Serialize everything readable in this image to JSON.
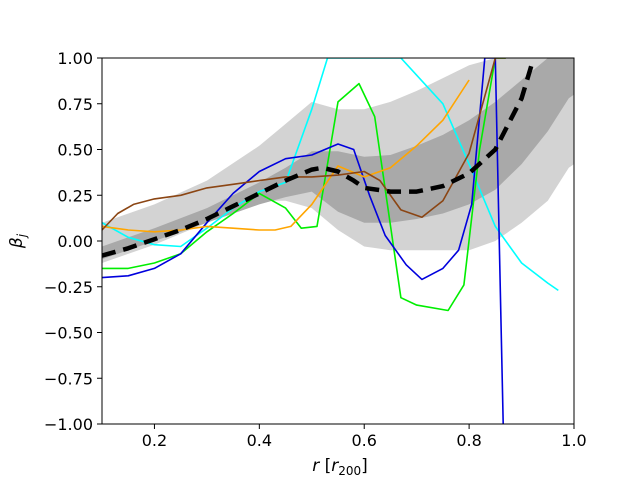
{
  "chart_data": {
    "type": "line",
    "title": "",
    "xlabel_main": "r",
    "xlabel_unit": "r",
    "xlabel_unit_sub": "200",
    "ylabel_main": "β",
    "ylabel_sub": "j",
    "xlim": [
      0.1,
      1.0
    ],
    "ylim": [
      -1.0,
      1.0
    ],
    "xticks": [
      0.2,
      0.4,
      0.6,
      0.8,
      1.0
    ],
    "xtick_labels": [
      "0.2",
      "0.4",
      "0.6",
      "0.8",
      "1.0"
    ],
    "yticks": [
      -1.0,
      -0.75,
      -0.5,
      -0.25,
      0.0,
      0.25,
      0.5,
      0.75,
      1.0
    ],
    "ytick_labels": [
      "−1.00",
      "−0.75",
      "−0.50",
      "−0.25",
      "0.00",
      "0.25",
      "0.50",
      "0.75",
      "1.00"
    ],
    "grid": false,
    "bands": [
      {
        "name": "outer band",
        "color": "#d3d3d3",
        "x": [
          0.1,
          0.2,
          0.3,
          0.4,
          0.45,
          0.5,
          0.55,
          0.6,
          0.65,
          0.7,
          0.75,
          0.8,
          0.85,
          0.9,
          0.95,
          0.99,
          1.0
        ],
        "upper": [
          0.1,
          0.2,
          0.33,
          0.52,
          0.64,
          0.76,
          0.72,
          0.72,
          0.76,
          0.82,
          0.89,
          0.96,
          1.0,
          1.0,
          1.0,
          1.0,
          1.0
        ],
        "lower": [
          -0.12,
          -0.02,
          0.1,
          0.22,
          0.22,
          0.18,
          0.06,
          -0.03,
          -0.05,
          -0.05,
          -0.05,
          -0.05,
          0.0,
          0.1,
          0.22,
          0.4,
          0.42
        ]
      },
      {
        "name": "inner band",
        "color": "#a9a9a9",
        "x": [
          0.1,
          0.2,
          0.3,
          0.4,
          0.45,
          0.5,
          0.55,
          0.6,
          0.65,
          0.7,
          0.75,
          0.8,
          0.85,
          0.9,
          0.95,
          0.99,
          1.0
        ],
        "upper": [
          -0.03,
          0.07,
          0.18,
          0.32,
          0.4,
          0.49,
          0.49,
          0.46,
          0.47,
          0.52,
          0.58,
          0.66,
          0.76,
          0.88,
          1.0,
          1.0,
          1.0
        ],
        "lower": [
          -0.1,
          0.0,
          0.1,
          0.2,
          0.24,
          0.27,
          0.16,
          0.1,
          0.1,
          0.12,
          0.15,
          0.2,
          0.28,
          0.42,
          0.6,
          0.78,
          0.8
        ]
      }
    ],
    "series": [
      {
        "name": "cyan",
        "color": "#00ffff",
        "x": [
          0.1,
          0.15,
          0.2,
          0.25,
          0.3,
          0.35,
          0.4,
          0.45,
          0.5,
          0.53,
          0.67,
          0.75,
          0.8,
          0.85,
          0.9,
          0.95,
          0.97
        ],
        "y": [
          0.1,
          0.02,
          -0.02,
          -0.03,
          0.07,
          0.18,
          0.27,
          0.32,
          0.72,
          1.0,
          1.0,
          0.75,
          0.42,
          0.08,
          -0.12,
          -0.23,
          -0.27
        ]
      },
      {
        "name": "green",
        "color": "#00ee00",
        "x": [
          0.1,
          0.15,
          0.2,
          0.25,
          0.3,
          0.35,
          0.4,
          0.45,
          0.48,
          0.51,
          0.55,
          0.59,
          0.62,
          0.67,
          0.7,
          0.76,
          0.79,
          0.82,
          0.85,
          0.87
        ],
        "y": [
          -0.15,
          -0.15,
          -0.12,
          -0.07,
          0.05,
          0.15,
          0.26,
          0.18,
          0.07,
          0.08,
          0.76,
          0.86,
          0.68,
          -0.31,
          -0.35,
          -0.38,
          -0.24,
          0.5,
          1.0,
          1.0
        ]
      },
      {
        "name": "blue",
        "color": "#0000dd",
        "x": [
          0.1,
          0.15,
          0.2,
          0.25,
          0.3,
          0.35,
          0.4,
          0.45,
          0.5,
          0.55,
          0.58,
          0.61,
          0.64,
          0.68,
          0.71,
          0.75,
          0.78,
          0.805,
          0.83,
          0.85,
          0.865
        ],
        "y": [
          -0.2,
          -0.19,
          -0.15,
          -0.07,
          0.1,
          0.26,
          0.38,
          0.45,
          0.47,
          0.53,
          0.5,
          0.25,
          0.03,
          -0.13,
          -0.21,
          -0.15,
          -0.05,
          0.2,
          1.0,
          1.0,
          -1.0
        ]
      },
      {
        "name": "orange",
        "color": "#ffa500",
        "x": [
          0.1,
          0.15,
          0.2,
          0.25,
          0.3,
          0.35,
          0.4,
          0.43,
          0.46,
          0.5,
          0.55,
          0.6,
          0.65,
          0.7,
          0.75,
          0.8
        ],
        "y": [
          0.08,
          0.06,
          0.05,
          0.06,
          0.08,
          0.07,
          0.06,
          0.06,
          0.08,
          0.2,
          0.41,
          0.35,
          0.4,
          0.52,
          0.66,
          0.88
        ]
      },
      {
        "name": "brown",
        "color": "#8b4513",
        "x": [
          0.1,
          0.13,
          0.16,
          0.2,
          0.25,
          0.3,
          0.35,
          0.4,
          0.45,
          0.5,
          0.55,
          0.6,
          0.63,
          0.67,
          0.71,
          0.75,
          0.8,
          0.85,
          0.87
        ],
        "y": [
          0.06,
          0.15,
          0.2,
          0.23,
          0.25,
          0.29,
          0.31,
          0.33,
          0.35,
          0.35,
          0.36,
          0.38,
          0.33,
          0.17,
          0.13,
          0.22,
          0.48,
          1.0,
          1.0
        ]
      },
      {
        "name": "median",
        "color": "#000000",
        "dashed": true,
        "x": [
          0.1,
          0.15,
          0.2,
          0.25,
          0.3,
          0.35,
          0.4,
          0.45,
          0.5,
          0.52,
          0.55,
          0.58,
          0.6,
          0.65,
          0.7,
          0.75,
          0.8,
          0.85,
          0.9,
          0.92
        ],
        "y": [
          -0.08,
          -0.04,
          0.01,
          0.06,
          0.12,
          0.19,
          0.26,
          0.33,
          0.39,
          0.4,
          0.38,
          0.33,
          0.29,
          0.27,
          0.27,
          0.3,
          0.37,
          0.5,
          0.78,
          0.97
        ]
      }
    ]
  }
}
